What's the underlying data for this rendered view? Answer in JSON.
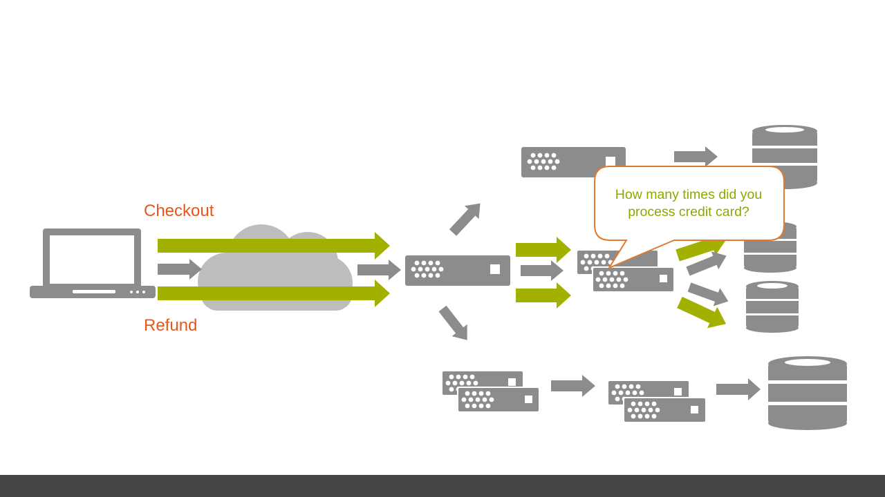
{
  "labels": {
    "checkout": "Checkout",
    "refund": "Refund"
  },
  "callout": {
    "text": "How many times did you process credit card?"
  },
  "colors": {
    "gray": "#8c8c8c",
    "green": "#a2b000",
    "orange": "#e8561e",
    "footer": "#434544",
    "cloud": "#bdbdbd"
  },
  "icons": [
    "laptop-icon",
    "cloud-icon",
    "server-icon",
    "database-icon",
    "arrow-icon",
    "speech-bubble"
  ]
}
